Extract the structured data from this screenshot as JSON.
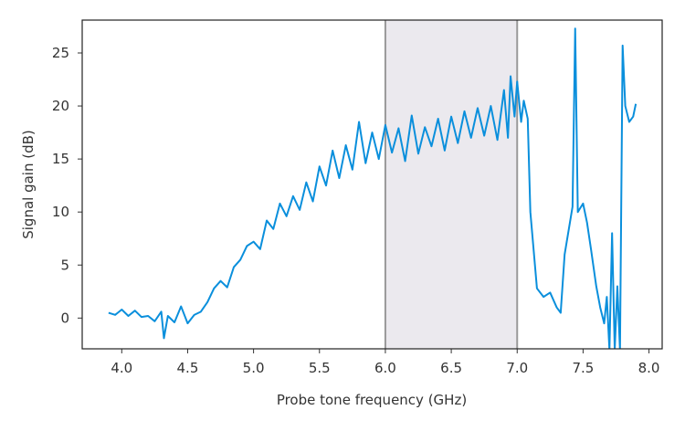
{
  "chart_data": {
    "type": "line",
    "x_label": "Probe tone frequency (GHz)",
    "y_label": "Signal gain (dB)",
    "xlim": [
      3.7,
      8.1
    ],
    "ylim": [
      -2.9,
      28.1
    ],
    "xticks": [
      {
        "value": 4,
        "label": "4.0"
      },
      {
        "value": 4.5,
        "label": "4.5"
      },
      {
        "value": 5,
        "label": "5.0"
      },
      {
        "value": 5.5,
        "label": "5.5"
      },
      {
        "value": 6,
        "label": "6.0"
      },
      {
        "value": 6.5,
        "label": "6.5"
      },
      {
        "value": 7,
        "label": "7.0"
      },
      {
        "value": 7.5,
        "label": "7.5"
      },
      {
        "value": 8,
        "label": "8.0"
      }
    ],
    "yticks": [
      0,
      5,
      10,
      15,
      20,
      25
    ],
    "shaded_region": [
      6.0,
      7.0
    ],
    "x": [
      3.9,
      3.95,
      4.0,
      4.05,
      4.1,
      4.15,
      4.2,
      4.25,
      4.3,
      4.32,
      4.35,
      4.4,
      4.45,
      4.5,
      4.55,
      4.6,
      4.65,
      4.7,
      4.75,
      4.8,
      4.85,
      4.9,
      4.95,
      5.0,
      5.05,
      5.1,
      5.15,
      5.2,
      5.25,
      5.3,
      5.35,
      5.4,
      5.45,
      5.5,
      5.55,
      5.6,
      5.65,
      5.7,
      5.75,
      5.8,
      5.85,
      5.9,
      5.95,
      6.0,
      6.05,
      6.1,
      6.15,
      6.2,
      6.25,
      6.3,
      6.35,
      6.4,
      6.45,
      6.5,
      6.55,
      6.6,
      6.65,
      6.7,
      6.75,
      6.8,
      6.85,
      6.9,
      6.93,
      6.95,
      6.98,
      7.0,
      7.03,
      7.05,
      7.08,
      7.1,
      7.15,
      7.2,
      7.25,
      7.3,
      7.33,
      7.36,
      7.4,
      7.42,
      7.44,
      7.46,
      7.5,
      7.53,
      7.56,
      7.6,
      7.63,
      7.66,
      7.68,
      7.7,
      7.72,
      7.74,
      7.76,
      7.78,
      7.8,
      7.82,
      7.85,
      7.88,
      7.9
    ],
    "series": [
      {
        "color": "#0a8fdc",
        "values": [
          0.5,
          0.3,
          0.8,
          0.2,
          0.7,
          0.1,
          0.2,
          -0.3,
          0.6,
          -1.9,
          0.2,
          -0.4,
          1.1,
          -0.5,
          0.3,
          0.6,
          1.5,
          2.8,
          3.5,
          2.9,
          4.8,
          5.5,
          6.8,
          7.2,
          6.5,
          9.2,
          8.4,
          10.8,
          9.6,
          11.5,
          10.2,
          12.8,
          11.0,
          14.3,
          12.5,
          15.8,
          13.2,
          16.3,
          14.0,
          18.5,
          14.6,
          17.5,
          15.0,
          18.2,
          15.6,
          17.9,
          14.8,
          19.1,
          15.5,
          18.0,
          16.2,
          18.8,
          15.8,
          19.0,
          16.5,
          19.5,
          17.0,
          19.8,
          17.2,
          20.0,
          16.8,
          21.5,
          17.0,
          22.8,
          19.0,
          22.3,
          18.5,
          20.5,
          18.8,
          10.0,
          2.8,
          2.0,
          2.4,
          1.0,
          0.5,
          6.0,
          9.0,
          10.5,
          27.3,
          10.0,
          10.8,
          9.0,
          6.5,
          3.0,
          1.0,
          -0.5,
          2.0,
          -3.0,
          8.0,
          -3.0,
          3.0,
          -3.0,
          25.7,
          20.0,
          18.5,
          19.0,
          20.2
        ]
      }
    ]
  }
}
